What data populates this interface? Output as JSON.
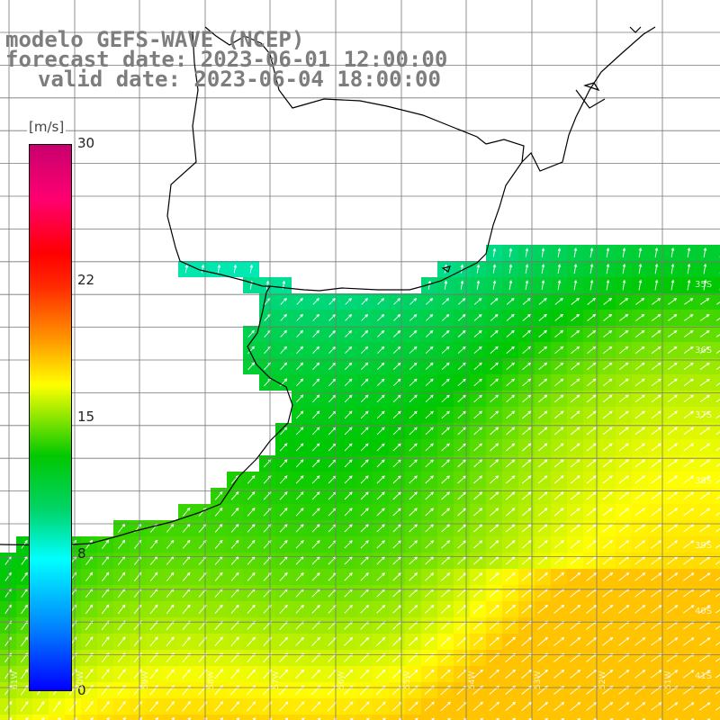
{
  "title": {
    "line1": "modelo GEFS-WAVE (NCEP)",
    "line2": "forecast date: 2023-06-01 12:00:00",
    "line3": "valid date: 2023-06-04 18:00:00"
  },
  "colorbar": {
    "unit": "[m/s]",
    "ticks": [
      "30",
      "22",
      "15",
      "8",
      "0"
    ],
    "tick_values": [
      30,
      22,
      15,
      8,
      0
    ],
    "range": [
      0,
      30
    ],
    "colors": [
      "#0000ff",
      "#0088ff",
      "#00ffff",
      "#00d46a",
      "#00c800",
      "#8ce600",
      "#ffff00",
      "#ff9b00",
      "#ff2a00",
      "#ff0000",
      "#ff0070",
      "#c8006e"
    ]
  },
  "grid": {
    "lat_labels": [
      "32S",
      "33S",
      "34S",
      "35S",
      "36S",
      "37S",
      "38S",
      "39S",
      "40S",
      "41S"
    ],
    "lon_labels": [
      "61W",
      "60W",
      "59W",
      "58W",
      "57W",
      "56W",
      "55W",
      "54W",
      "53W",
      "52W",
      "51W"
    ]
  },
  "legend_position": "left",
  "field": {
    "variable": "wind speed",
    "arrow_color": "#ffffff",
    "land_color": "#ffffff",
    "coast_color": "#000000"
  }
}
